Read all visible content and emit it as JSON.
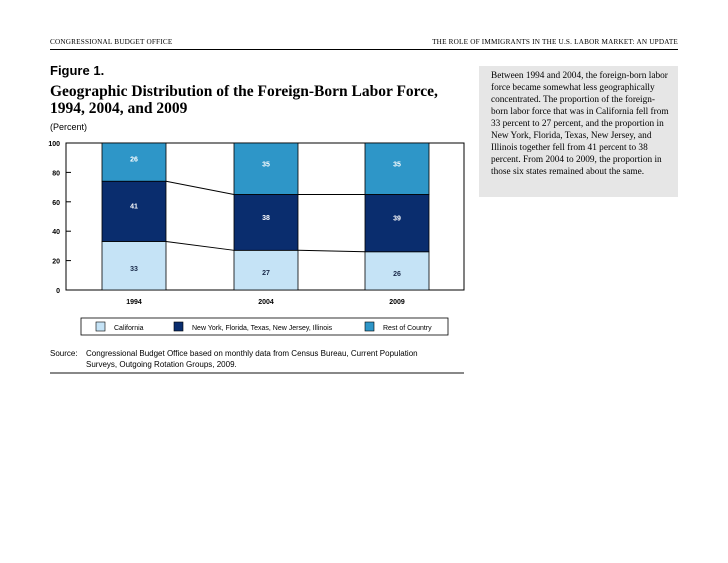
{
  "header": {
    "left": "CONGRESSIONAL BUDGET OFFICE",
    "right": "THE ROLE OF IMMIGRANTS IN THE U.S. LABOR MARKET: AN UPDATE"
  },
  "figure": {
    "label": "Figure 1.",
    "title": "Geographic Distribution of the Foreign-Born Labor Force, 1994, 2004, and 2009",
    "unit": "(Percent)"
  },
  "sidebar": {
    "text": "Between 1994 and 2004, the foreign-born labor force became somewhat less geographically concentrated. The proportion of the foreign-born labor force that was in California fell from 33 percent to 27 percent, and the proportion in New York, Florida, Texas, New Jersey, and Illinois together fell from 41 percent to 38 percent. From 2004 to 2009, the proportion in those six states remained about the same."
  },
  "source": {
    "label": "Source:",
    "text": "Congressional Budget Office based on monthly data from Census Bureau, Current Population Surveys, Outgoing Rotation Groups, 2009."
  },
  "colors": {
    "california": "#c5e3f6",
    "ny_group": "#0a2d6e",
    "rest": "#2e96c8",
    "label_light": "#1a2a4a",
    "label_dark": "#ffffff"
  },
  "chart_data": {
    "type": "bar",
    "stacked": true,
    "categories": [
      "1994",
      "2004",
      "2009"
    ],
    "series": [
      {
        "name": "California",
        "values": [
          33,
          27,
          26
        ]
      },
      {
        "name": "New York, Florida, Texas, New Jersey, Illinois",
        "values": [
          41,
          38,
          39
        ]
      },
      {
        "name": "Rest of Country",
        "values": [
          26,
          35,
          35
        ]
      }
    ],
    "ylim": [
      0,
      100
    ],
    "yticks": [
      0,
      20,
      40,
      60,
      80,
      100
    ],
    "ylabel": "(Percent)",
    "connector_lines": true,
    "legend": "bottom"
  }
}
